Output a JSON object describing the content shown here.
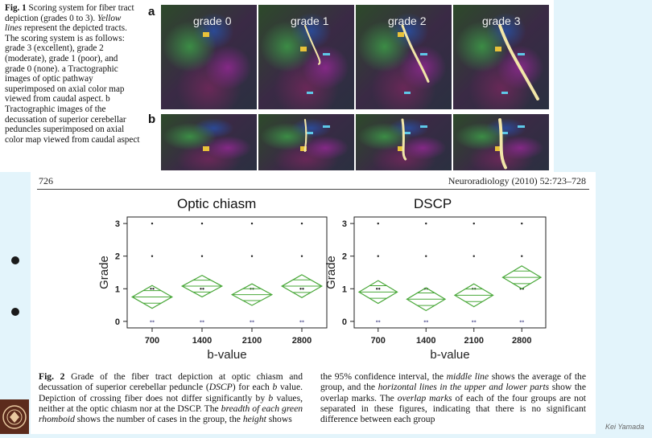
{
  "fig1": {
    "caption_label": "Fig. 1",
    "caption_text_1": "Scoring system for fiber tract depiction (grades 0 to 3).",
    "caption_italic": "Yellow lines",
    "caption_text_2": "represent the depicted tracts. The scoring system is as follows: grade 3 (excellent), grade 2 (moderate), grade 1 (poor), and grade 0 (none). a Tractographic images of optic pathway superimposed on axial color map viewed from caudal aspect. b Tractographic images of the decussation of superior cerebellar peduncles superimposed on axial color map viewed from caudal aspect",
    "panel_a": "a",
    "panel_b": "b",
    "grade_labels": [
      "grade 0",
      "grade 1",
      "grade 2",
      "grade 3"
    ]
  },
  "page": {
    "page_number": "726",
    "journal": "Neuroradiology (2010) 52:723–728"
  },
  "chart_data": [
    {
      "type": "scatter",
      "title": "Optic chiasm",
      "xlabel": "b-value",
      "ylabel": "Grade",
      "categories": [
        "700",
        "1400",
        "2100",
        "2800"
      ],
      "yticks": [
        "0",
        "1",
        "2",
        "3"
      ],
      "ylim": [
        -0.2,
        3.2
      ],
      "means": [
        0.75,
        1.08,
        0.82,
        1.08
      ],
      "ci_half": [
        0.35,
        0.33,
        0.33,
        0.35
      ],
      "grid": false
    },
    {
      "type": "scatter",
      "title": "DSCP",
      "xlabel": "b-value",
      "ylabel": "Grade",
      "categories": [
        "700",
        "1400",
        "2100",
        "2800"
      ],
      "yticks": [
        "0",
        "1",
        "2",
        "3"
      ],
      "ylim": [
        -0.2,
        3.2
      ],
      "means": [
        0.9,
        0.68,
        0.8,
        1.35
      ],
      "ci_half": [
        0.35,
        0.35,
        0.35,
        0.35
      ],
      "grid": false
    }
  ],
  "fig2": {
    "label": "Fig. 2",
    "left_1": "Grade of the fiber tract depiction at optic chiasm and decussation of superior cerebellar peduncle (",
    "left_italic_1": "DSCP",
    "left_2": ") for each ",
    "left_italic_2": "b",
    "left_3": " value. Depiction of crossing fiber does not differ significantly by ",
    "left_italic_3": "b",
    "left_4": " values, neither at the optic chiasm nor at the DSCP. The ",
    "left_italic_4": "breadth of each green rhomboid",
    "left_5": " shows the number of cases in the group, the ",
    "left_italic_5": "height",
    "left_6": " shows",
    "right_1": "the 95% confidence interval, the ",
    "right_italic_1": "middle line",
    "right_2": " shows the average of the group, and the ",
    "right_italic_2": "horizontal lines in the upper and lower parts",
    "right_3": " show the overlap marks. The ",
    "right_italic_3": "overlap marks",
    "right_4": " of each of the four groups are not separated in these figures, indicating that there is no significant difference between each group"
  },
  "footer": {
    "author": "Kei Yamada"
  },
  "colors": {
    "rhomboid": "#4aa83a",
    "slide_bg": "#e3f4fb",
    "tract": "#f2e6a8",
    "marker": "#e8c23a",
    "roi_blue": "#5ec8e8"
  }
}
